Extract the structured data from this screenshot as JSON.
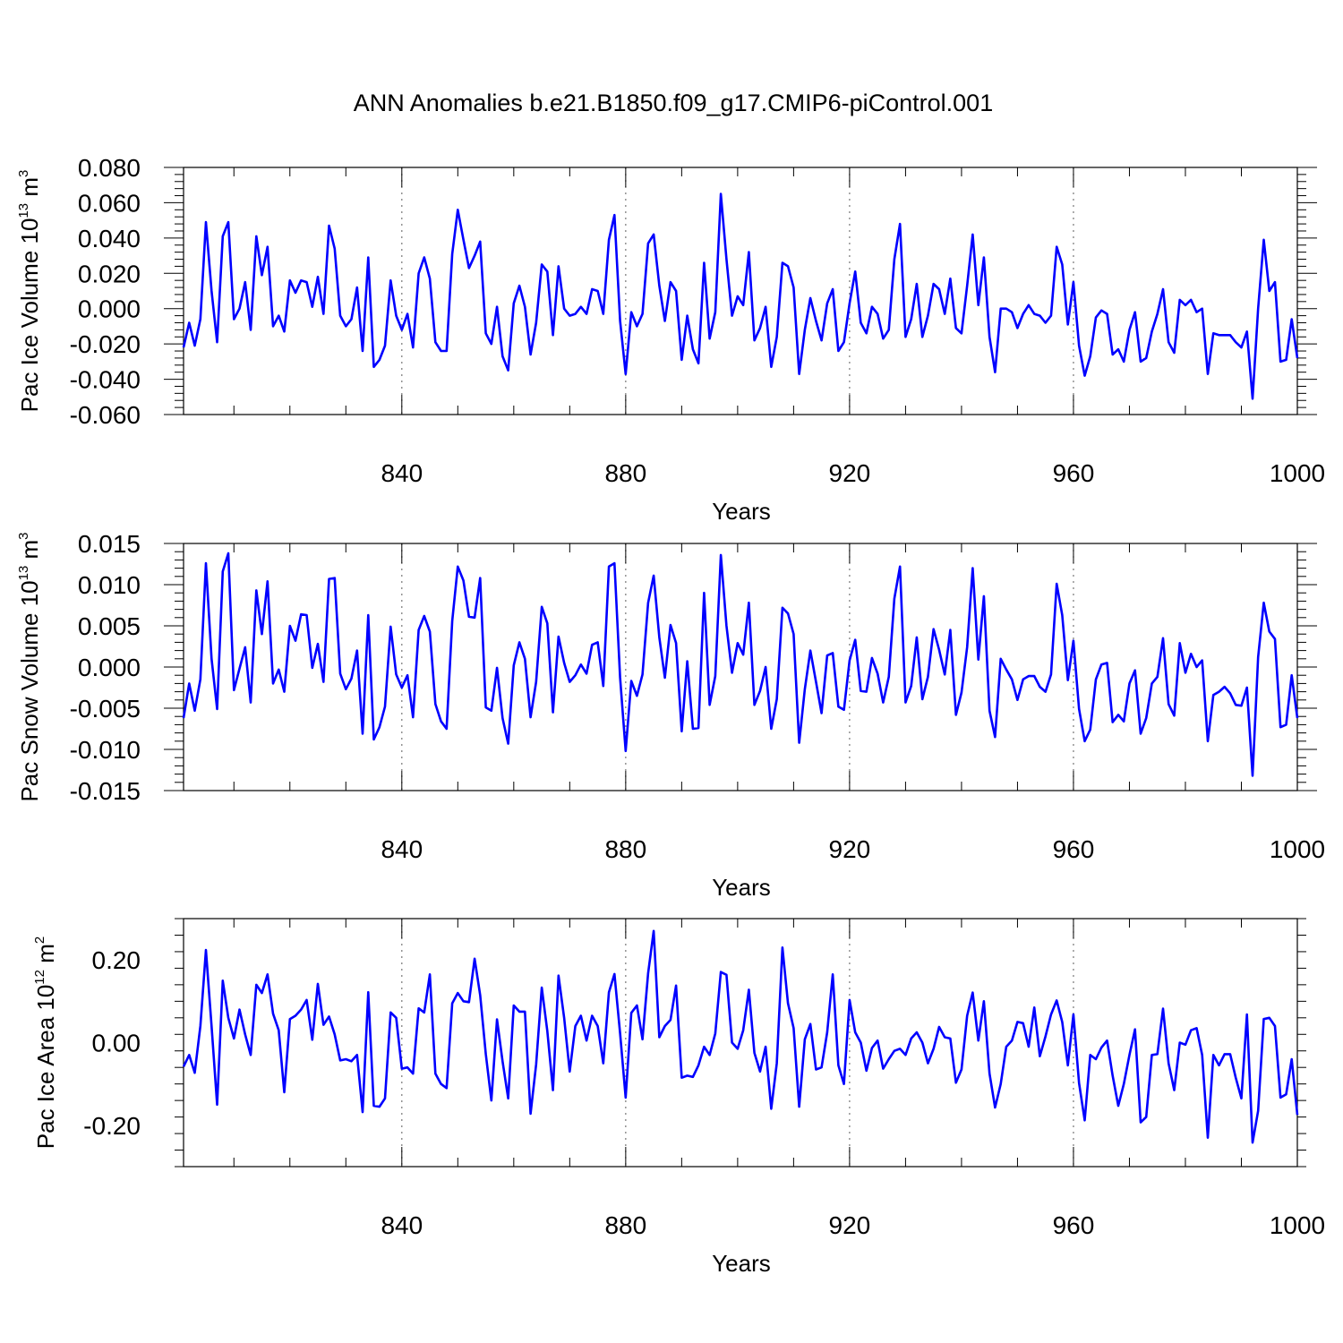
{
  "title": "ANN Anomalies b.e21.B1850.f09_g17.CMIP6-piControl.001",
  "colors": {
    "line": "#0000ff",
    "axis": "#000000",
    "grid": "#777777"
  },
  "chart_data": [
    {
      "type": "line",
      "title": "ANN Anomalies b.e21.B1850.f09_g17.CMIP6-piControl.001",
      "xlabel": "Years",
      "ylabel": {
        "main": "Pac Ice Volume 10",
        "exp": "13",
        "unit": " m",
        "unit_exp": "3"
      },
      "xlim": [
        801,
        1000
      ],
      "ylim": [
        -0.06,
        0.08
      ],
      "x_ticks": [
        "840",
        "880",
        "920",
        "960",
        "1000"
      ],
      "y_ticks": [
        "0.080",
        "0.060",
        "0.040",
        "0.020",
        "0.000",
        "-0.020",
        "-0.040",
        "-0.060"
      ],
      "grid": "vertical dotted at major x ticks",
      "series": [
        {
          "x_start": 801,
          "values": [
            -0.022,
            -0.008,
            -0.021,
            -0.006,
            0.049,
            0.01,
            -0.019,
            0.041,
            0.049,
            -0.006,
            0.0,
            0.015,
            -0.012,
            0.041,
            0.019,
            0.035,
            -0.01,
            -0.004,
            -0.013,
            0.016,
            0.009,
            0.016,
            0.015,
            0.001,
            0.018,
            -0.003,
            0.047,
            0.034,
            -0.004,
            -0.01,
            -0.006,
            0.012,
            -0.024,
            0.029,
            -0.033,
            -0.029,
            -0.021,
            0.016,
            -0.004,
            -0.012,
            -0.003,
            -0.022,
            0.02,
            0.029,
            0.017,
            -0.019,
            -0.024,
            -0.024,
            0.031,
            0.056,
            0.039,
            0.023,
            0.03,
            0.038,
            -0.014,
            -0.02,
            0.001,
            -0.027,
            -0.035,
            0.003,
            0.013,
            0.001,
            -0.026,
            -0.008,
            0.025,
            0.021,
            -0.015,
            0.024,
            0.0,
            -0.004,
            -0.003,
            0.001,
            -0.003,
            0.011,
            0.01,
            -0.003,
            0.039,
            0.053,
            -0.007,
            -0.037,
            -0.002,
            -0.01,
            -0.003,
            0.037,
            0.042,
            0.013,
            -0.007,
            0.015,
            0.01,
            -0.029,
            -0.004,
            -0.023,
            -0.031,
            0.026,
            -0.017,
            -0.002,
            0.065,
            0.028,
            -0.004,
            0.007,
            0.002,
            0.032,
            -0.018,
            -0.011,
            0.001,
            -0.033,
            -0.016,
            0.026,
            0.024,
            0.012,
            -0.037,
            -0.012,
            0.006,
            -0.007,
            -0.018,
            0.003,
            0.011,
            -0.024,
            -0.019,
            0.003,
            0.021,
            -0.008,
            -0.014,
            0.001,
            -0.003,
            -0.017,
            -0.012,
            0.028,
            0.048,
            -0.016,
            -0.006,
            0.014,
            -0.016,
            -0.004,
            0.014,
            0.011,
            -0.003,
            0.017,
            -0.011,
            -0.014,
            0.013,
            0.042,
            0.002,
            0.029,
            -0.016,
            -0.036,
            0.0,
            0.0,
            -0.002,
            -0.011,
            -0.003,
            0.002,
            -0.003,
            -0.004,
            -0.008,
            -0.004,
            0.035,
            0.025,
            -0.009,
            0.015,
            -0.021,
            -0.038,
            -0.027,
            -0.005,
            -0.001,
            -0.003,
            -0.026,
            -0.023,
            -0.03,
            -0.012,
            -0.002,
            -0.03,
            -0.028,
            -0.013,
            -0.003,
            0.011,
            -0.019,
            -0.025,
            0.005,
            0.002,
            0.005,
            -0.002,
            0.0,
            -0.037,
            -0.014,
            -0.015,
            -0.015,
            -0.015,
            -0.019,
            -0.022,
            -0.013,
            -0.051,
            0.0,
            0.039,
            0.01,
            0.015,
            -0.03,
            -0.029,
            -0.006,
            -0.028
          ]
        }
      ]
    },
    {
      "type": "line",
      "xlabel": "Years",
      "ylabel": {
        "main": "Pac Snow Volume 10",
        "exp": "13",
        "unit": " m",
        "unit_exp": "3"
      },
      "xlim": [
        801,
        1000
      ],
      "ylim": [
        -0.015,
        0.015
      ],
      "x_ticks": [
        "840",
        "880",
        "920",
        "960",
        "1000"
      ],
      "y_ticks": [
        "0.015",
        "0.010",
        "0.005",
        "0.000",
        "-0.005",
        "-0.010",
        "-0.015"
      ],
      "grid": "vertical dotted at major x ticks",
      "series": [
        {
          "x_start": 801,
          "values": [
            -0.0062,
            -0.002,
            -0.0053,
            -0.0015,
            0.0126,
            0.001,
            -0.0051,
            0.0116,
            0.0138,
            -0.0028,
            -0.0002,
            0.0024,
            -0.0043,
            0.0093,
            0.004,
            0.0104,
            -0.002,
            -0.0003,
            -0.003,
            0.005,
            0.0032,
            0.0064,
            0.0063,
            -0.0001,
            0.0028,
            -0.0018,
            0.0107,
            0.0108,
            -0.0008,
            -0.0027,
            -0.0014,
            0.002,
            -0.0081,
            0.0063,
            -0.0088,
            -0.0073,
            -0.0048,
            0.0049,
            -0.0009,
            -0.0025,
            -0.001,
            -0.0061,
            0.0045,
            0.0062,
            0.0043,
            -0.0045,
            -0.0066,
            -0.0075,
            0.0056,
            0.0122,
            0.0105,
            0.0061,
            0.006,
            0.0108,
            -0.0049,
            -0.0053,
            -0.0001,
            -0.0062,
            -0.0093,
            0.0002,
            0.003,
            0.001,
            -0.0061,
            -0.0018,
            0.0073,
            0.0053,
            -0.0055,
            0.0037,
            0.0005,
            -0.0018,
            -0.001,
            0.0003,
            -0.0008,
            0.0027,
            0.003,
            -0.0023,
            0.0122,
            0.0126,
            -0.0013,
            -0.0102,
            -0.0017,
            -0.0035,
            -0.0009,
            0.0078,
            0.0111,
            0.0036,
            -0.0013,
            0.0051,
            0.0029,
            -0.0078,
            0.0007,
            -0.0075,
            -0.0074,
            0.009,
            -0.0046,
            -0.0011,
            0.0136,
            0.005,
            -0.0007,
            0.0029,
            0.0015,
            0.0078,
            -0.0046,
            -0.0029,
            0.0,
            -0.0075,
            -0.0039,
            0.0072,
            0.0065,
            0.004,
            -0.0092,
            -0.0027,
            0.002,
            -0.0018,
            -0.0056,
            0.0014,
            0.0017,
            -0.0048,
            -0.0052,
            0.0008,
            0.0033,
            -0.0029,
            -0.003,
            0.0011,
            -0.0008,
            -0.0043,
            -0.0012,
            0.0083,
            0.0122,
            -0.0043,
            -0.0023,
            0.0036,
            -0.0039,
            -0.0012,
            0.0046,
            0.0021,
            -0.0009,
            0.0045,
            -0.0058,
            -0.0031,
            0.0024,
            0.012,
            0.0009,
            0.0086,
            -0.0053,
            -0.0085,
            0.001,
            -0.0003,
            -0.0015,
            -0.004,
            -0.0015,
            -0.0011,
            -0.0011,
            -0.0024,
            -0.003,
            -0.0009,
            0.0101,
            0.0063,
            -0.0016,
            0.0032,
            -0.0051,
            -0.009,
            -0.0076,
            -0.0015,
            0.0003,
            0.0005,
            -0.0067,
            -0.0058,
            -0.0066,
            -0.002,
            -0.0004,
            -0.0081,
            -0.0062,
            -0.002,
            -0.0012,
            0.0035,
            -0.0045,
            -0.0059,
            0.0029,
            -0.0007,
            0.0016,
            0.0,
            0.0008,
            -0.009,
            -0.0034,
            -0.003,
            -0.0024,
            -0.0032,
            -0.0046,
            -0.0047,
            -0.0025,
            -0.0132,
            0.0012,
            0.0078,
            0.0043,
            0.0034,
            -0.0073,
            -0.007,
            -0.001,
            -0.0062
          ]
        }
      ]
    },
    {
      "type": "line",
      "xlabel": "Years",
      "ylabel": {
        "main": "Pac Ice Area 10",
        "exp": "12",
        "unit": " m",
        "unit_exp": "2"
      },
      "xlim": [
        801,
        1000
      ],
      "ylim": [
        -0.3,
        0.3
      ],
      "x_ticks": [
        "840",
        "880",
        "920",
        "960",
        "1000"
      ],
      "y_ticks": [
        "0.20",
        "0.00",
        "-0.20"
      ],
      "grid": "vertical dotted at major x ticks",
      "series": [
        {
          "x_start": 801,
          "values": [
            -0.058,
            -0.03,
            -0.073,
            0.04,
            0.224,
            0.04,
            -0.15,
            0.15,
            0.06,
            0.01,
            0.08,
            0.02,
            -0.03,
            0.14,
            0.12,
            0.165,
            0.07,
            0.03,
            -0.12,
            0.057,
            0.065,
            0.08,
            0.103,
            0.007,
            0.142,
            0.043,
            0.063,
            0.02,
            -0.043,
            -0.04,
            -0.045,
            -0.03,
            -0.168,
            0.122,
            -0.153,
            -0.155,
            -0.135,
            0.073,
            0.06,
            -0.063,
            -0.06,
            -0.075,
            0.083,
            0.073,
            0.165,
            -0.075,
            -0.1,
            -0.11,
            0.095,
            0.12,
            0.1,
            0.098,
            0.203,
            0.115,
            -0.028,
            -0.14,
            0.056,
            -0.045,
            -0.135,
            0.09,
            0.075,
            0.075,
            -0.172,
            -0.053,
            0.133,
            0.028,
            -0.115,
            0.162,
            0.06,
            -0.07,
            0.04,
            0.065,
            0.005,
            0.065,
            0.04,
            -0.05,
            0.122,
            0.166,
            0.022,
            -0.133,
            0.072,
            0.09,
            0.008,
            0.168,
            0.27,
            0.013,
            0.04,
            0.055,
            0.138,
            -0.085,
            -0.08,
            -0.083,
            -0.055,
            -0.01,
            -0.03,
            0.022,
            0.171,
            0.164,
            0.0,
            -0.015,
            0.03,
            0.128,
            -0.025,
            -0.07,
            -0.01,
            -0.16,
            -0.05,
            0.23,
            0.095,
            0.035,
            -0.155,
            0.008,
            0.045,
            -0.065,
            -0.06,
            0.025,
            0.165,
            -0.055,
            -0.1,
            0.103,
            0.025,
            0.0,
            -0.068,
            -0.013,
            0.005,
            -0.063,
            -0.04,
            -0.02,
            -0.015,
            -0.03,
            0.01,
            0.025,
            0.0,
            -0.05,
            -0.015,
            0.038,
            0.013,
            0.01,
            -0.097,
            -0.065,
            0.065,
            0.121,
            0.005,
            0.1,
            -0.075,
            -0.157,
            -0.1,
            -0.01,
            0.005,
            0.05,
            0.047,
            -0.01,
            0.085,
            -0.033,
            0.015,
            0.068,
            0.102,
            0.05,
            -0.055,
            0.068,
            -0.098,
            -0.188,
            -0.03,
            -0.04,
            -0.012,
            0.005,
            -0.08,
            -0.153,
            -0.1,
            -0.03,
            0.032,
            -0.193,
            -0.18,
            -0.03,
            -0.028,
            0.082,
            -0.05,
            -0.115,
            0.0,
            -0.005,
            0.03,
            0.035,
            -0.03,
            -0.23,
            -0.03,
            -0.055,
            -0.028,
            -0.028,
            -0.085,
            -0.135,
            0.068,
            -0.242,
            -0.165,
            0.057,
            0.06,
            0.04,
            -0.133,
            -0.125,
            -0.04,
            -0.175
          ]
        }
      ]
    }
  ]
}
